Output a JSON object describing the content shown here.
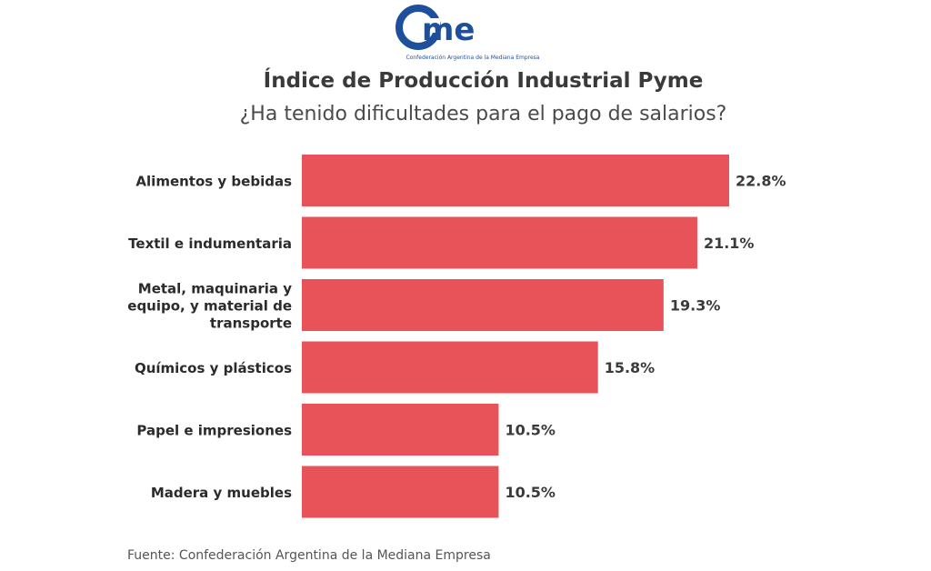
{
  "logo": {
    "text": "came",
    "subtitle": "Confederación Argentina de la Mediana Empresa",
    "color": "#1e4f9c"
  },
  "title": "Índice de Producción Industrial Pyme",
  "subtitle": "¿Ha tenido dificultades para el pago de salarios?",
  "source": "Fuente: Confederación Argentina de la Mediana Empresa",
  "chart_data": {
    "type": "bar",
    "orientation": "horizontal",
    "categories": [
      [
        "Alimentos y bebidas"
      ],
      [
        "Textil e indumentaria"
      ],
      [
        "Metal, maquinaria y",
        "equipo, y material de",
        "transporte"
      ],
      [
        "Químicos y plásticos"
      ],
      [
        "Papel e impresiones"
      ],
      [
        "Madera y muebles"
      ]
    ],
    "values": [
      22.8,
      21.1,
      19.3,
      15.8,
      10.5,
      10.5
    ],
    "value_labels": [
      "22.8%",
      "21.1%",
      "19.3%",
      "15.8%",
      "10.5%",
      "10.5%"
    ],
    "xlim": [
      0,
      22.8
    ],
    "bar_color": "#e8535a",
    "grid": false
  }
}
